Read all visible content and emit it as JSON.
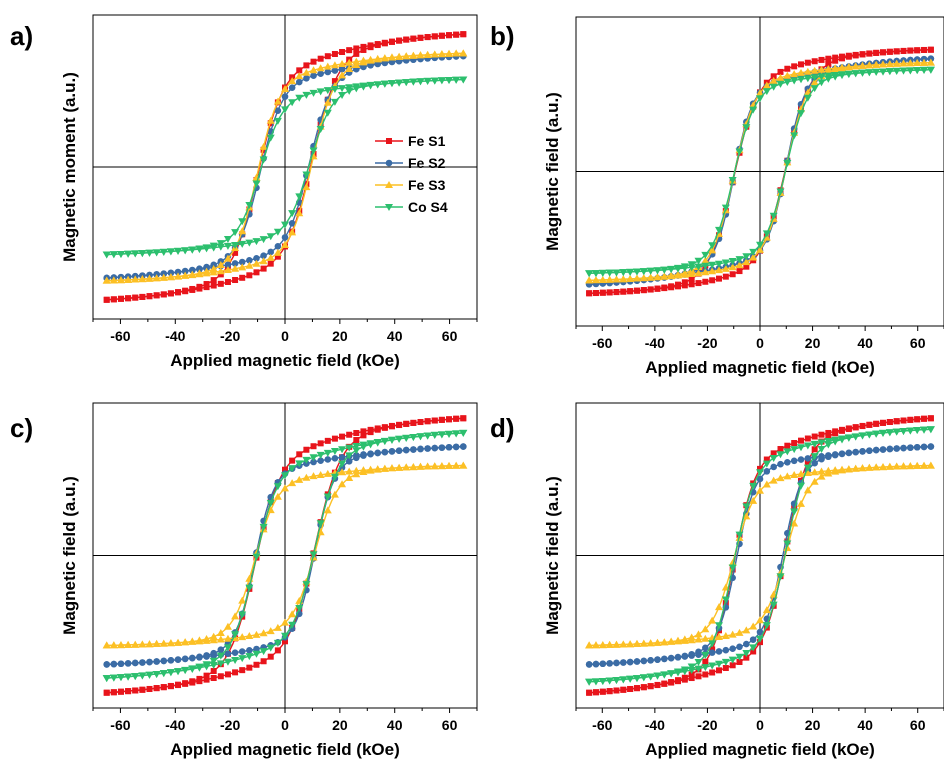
{
  "figure": {
    "series_colors": {
      "Fe S1": "#e8141b",
      "Fe S2": "#3b6ca5",
      "Fe S3": "#fcc025",
      "Co S4": "#2cbf6e"
    }
  },
  "chart_data": [
    {
      "panel": "a)",
      "type": "line",
      "xlabel": "Applied magnetic field (kOe)",
      "ylabel": "Magnetic moment (a.u.)",
      "xlim": [
        -70,
        70
      ],
      "ylim": [
        -1.2,
        1.2
      ],
      "xticks": [
        -60,
        -40,
        -20,
        0,
        20,
        40,
        60
      ],
      "legend": {
        "position": "center-right",
        "entries": [
          "Fe S1",
          "Fe S2",
          "Fe S3",
          "Co S4"
        ]
      },
      "series": [
        {
          "name": "Fe S1",
          "color": "#e8141b",
          "marker": "square",
          "ms": 1.0,
          "hc": 10,
          "w": 9,
          "p": 0.3,
          "pw": 45
        },
        {
          "name": "Fe S2",
          "color": "#3b6ca5",
          "marker": "circle",
          "ms": 0.88,
          "hc": -9,
          "w": 8,
          "p": 0.25,
          "pw": 50
        },
        {
          "name": "Fe S3",
          "color": "#fcc025",
          "marker": "triangle-up",
          "ms": 0.93,
          "hc": 10,
          "w": 8,
          "p": 0.2,
          "pw": 40
        },
        {
          "name": "Co S4",
          "color": "#2cbf6e",
          "marker": "triangle-down",
          "ms": 0.72,
          "hc": 9,
          "w": 8,
          "p": 0.2,
          "pw": 45
        }
      ]
    },
    {
      "panel": "b)",
      "type": "line",
      "xlabel": "Applied magnetic field (kOe)",
      "ylabel": "Magnetic field (a.u.)",
      "xlim": [
        -70,
        70
      ],
      "ylim": [
        -1.2,
        1.2
      ],
      "xticks": [
        -60,
        -40,
        -20,
        0,
        20,
        40,
        60
      ],
      "legend": null,
      "series": [
        {
          "name": "Fe S1",
          "color": "#e8141b",
          "marker": "square",
          "ms": 0.98,
          "hc": 10,
          "w": 9,
          "p": 0.2,
          "pw": 40
        },
        {
          "name": "Fe S2",
          "color": "#3b6ca5",
          "marker": "circle",
          "ms": 0.88,
          "hc": -10,
          "w": 7,
          "p": 0.25,
          "pw": 50
        },
        {
          "name": "Fe S3",
          "color": "#fcc025",
          "marker": "triangle-up",
          "ms": 0.92,
          "hc": 10,
          "w": 8,
          "p": 0.15,
          "pw": 40
        },
        {
          "name": "Co S4",
          "color": "#2cbf6e",
          "marker": "triangle-down",
          "ms": 0.86,
          "hc": 10,
          "w": 8,
          "p": 0.15,
          "pw": 40
        }
      ]
    },
    {
      "panel": "c)",
      "type": "line",
      "xlabel": "Applied magnetic field (kOe)",
      "ylabel": "Magnetic field (a.u.)",
      "xlim": [
        -70,
        70
      ],
      "ylim": [
        -1.2,
        1.2
      ],
      "xticks": [
        -60,
        -40,
        -20,
        0,
        20,
        40,
        60
      ],
      "legend": null,
      "series": [
        {
          "name": "Fe S1",
          "color": "#e8141b",
          "marker": "square",
          "ms": 1.03,
          "hc": 11,
          "w": 9,
          "p": 0.3,
          "pw": 45
        },
        {
          "name": "Fe S2",
          "color": "#3b6ca5",
          "marker": "circle",
          "ms": 0.9,
          "hc": -11,
          "w": 7,
          "p": 0.2,
          "pw": 50
        },
        {
          "name": "Fe S3",
          "color": "#fcc025",
          "marker": "triangle-up",
          "ms": 0.77,
          "hc": 11,
          "w": 8,
          "p": 0.15,
          "pw": 40
        },
        {
          "name": "Co S4",
          "color": "#2cbf6e",
          "marker": "triangle-down",
          "ms": 0.92,
          "hc": 11,
          "w": 8,
          "p": 0.3,
          "pw": 45
        }
      ]
    },
    {
      "panel": "d)",
      "type": "line",
      "xlabel": "Applied magnetic field (kOe)",
      "ylabel": "Magnetic field (a.u.)",
      "xlim": [
        -70,
        70
      ],
      "ylim": [
        -1.2,
        1.2
      ],
      "xticks": [
        -60,
        -40,
        -20,
        0,
        20,
        40,
        60
      ],
      "legend": null,
      "series": [
        {
          "name": "Fe S1",
          "color": "#e8141b",
          "marker": "square",
          "ms": 1.03,
          "hc": 10,
          "w": 8,
          "p": 0.3,
          "pw": 45
        },
        {
          "name": "Fe S2",
          "color": "#3b6ca5",
          "marker": "circle",
          "ms": 0.9,
          "hc": -9,
          "w": 7,
          "p": 0.2,
          "pw": 50
        },
        {
          "name": "Fe S3",
          "color": "#fcc025",
          "marker": "triangle-up",
          "ms": 0.77,
          "hc": 10,
          "w": 8,
          "p": 0.15,
          "pw": 40
        },
        {
          "name": "Co S4",
          "color": "#2cbf6e",
          "marker": "triangle-down",
          "ms": 0.99,
          "hc": 10,
          "w": 8,
          "p": 0.25,
          "pw": 45
        }
      ]
    }
  ]
}
